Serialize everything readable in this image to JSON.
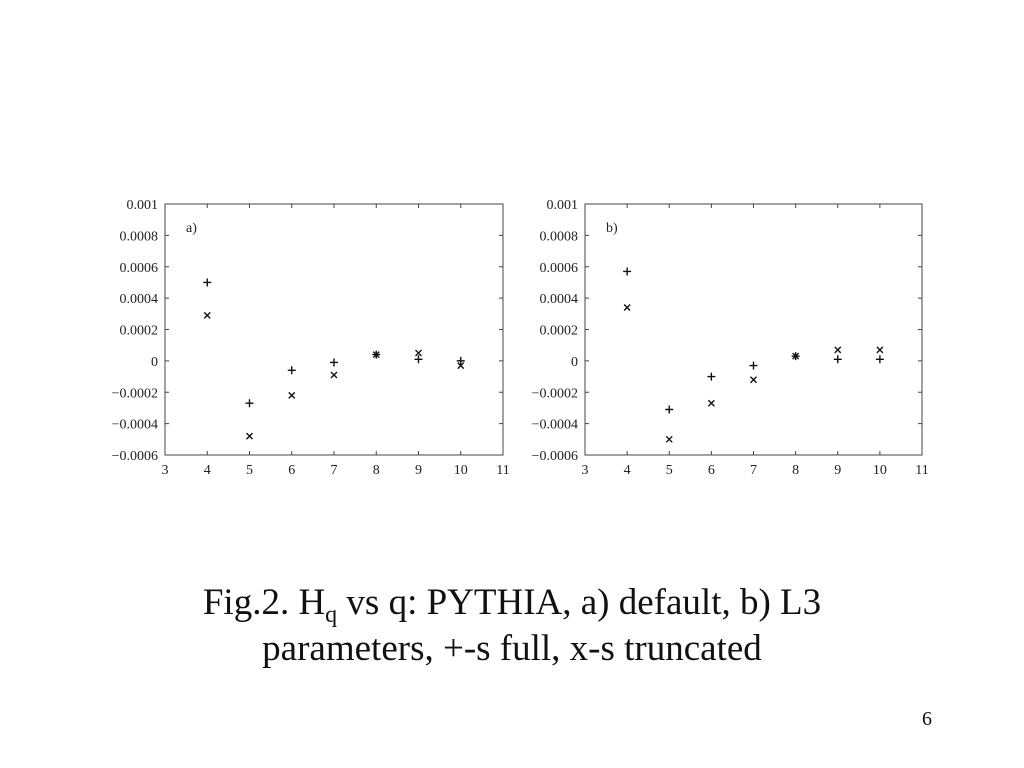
{
  "chart_data": [
    {
      "type": "scatter",
      "panel_label": "a)",
      "xlim": [
        3,
        11
      ],
      "ylim": [
        -0.0006,
        0.001
      ],
      "x_ticks": [
        "3",
        "4",
        "5",
        "6",
        "7",
        "8",
        "9",
        "10",
        "11"
      ],
      "y_ticks": [
        "0.001",
        "0.0008",
        "0.0006",
        "0.0004",
        "0.0002",
        "0",
        "−0.0002",
        "−0.0004",
        "−0.0006"
      ],
      "grid": false,
      "series": [
        {
          "marker": "+",
          "x": [
            4,
            5,
            6,
            7,
            8,
            9,
            10
          ],
          "y": [
            0.0005,
            -0.00027,
            -6e-05,
            -1e-05,
            4e-05,
            1e-05,
            0.0
          ]
        },
        {
          "marker": "x",
          "x": [
            4,
            5,
            6,
            7,
            8,
            9,
            10
          ],
          "y": [
            0.00029,
            -0.00048,
            -0.00022,
            -9e-05,
            4e-05,
            5e-05,
            -3e-05
          ]
        }
      ]
    },
    {
      "type": "scatter",
      "panel_label": "b)",
      "xlim": [
        3,
        11
      ],
      "ylim": [
        -0.0006,
        0.001
      ],
      "x_ticks": [
        "3",
        "4",
        "5",
        "6",
        "7",
        "8",
        "9",
        "10",
        "11"
      ],
      "y_ticks": [
        "0.001",
        "0.0008",
        "0.0006",
        "0.0004",
        "0.0002",
        "0",
        "−0.0002",
        "−0.0004",
        "−0.0006"
      ],
      "grid": false,
      "series": [
        {
          "marker": "+",
          "x": [
            4,
            5,
            6,
            7,
            8,
            9,
            10
          ],
          "y": [
            0.00057,
            -0.00031,
            -0.0001,
            -3e-05,
            3e-05,
            1e-05,
            1e-05
          ]
        },
        {
          "marker": "x",
          "x": [
            4,
            5,
            6,
            7,
            8,
            9,
            10
          ],
          "y": [
            0.00034,
            -0.0005,
            -0.00027,
            -0.00012,
            3e-05,
            7e-05,
            7e-05
          ]
        }
      ]
    }
  ],
  "caption": {
    "prefix": "Fig.2. H",
    "subscript": "q",
    "suffix": " vs q: PYTHIA, a) default, b) L3",
    "line2": "parameters, +-s full, x-s truncated"
  },
  "page_number": "6"
}
